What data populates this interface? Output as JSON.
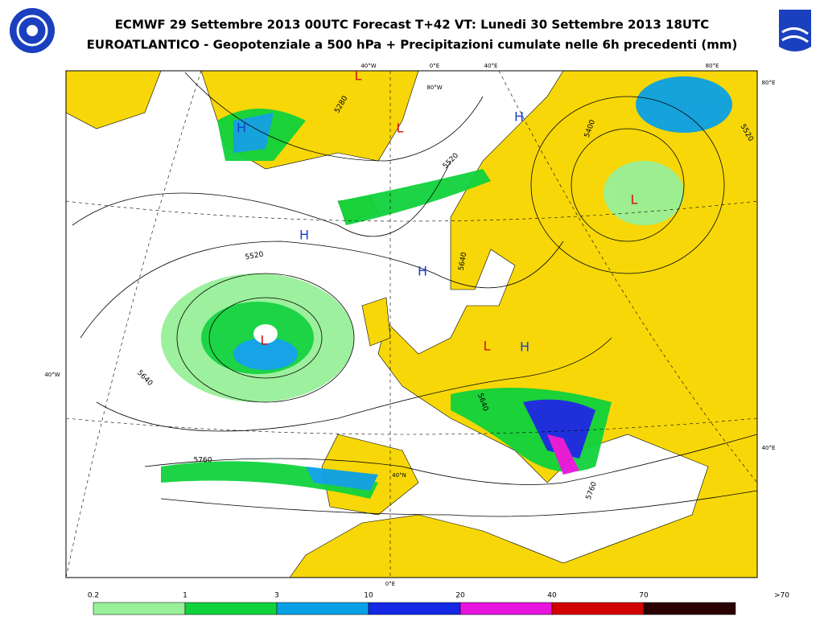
{
  "header": {
    "title": "ECMWF 29 Settembre 2013 00UTC Forecast T+42 VT: Lunedi 30 Settembre 2013 18UTC",
    "subtitle": "EUROATLANTICO - Geopotenziale a 500 hPa + Precipitazioni cumulate nelle 6h precedenti (mm)"
  },
  "map": {
    "pressure_centers": [
      {
        "text": "L",
        "color": "#d41010"
      },
      {
        "text": "L",
        "color": "#d41010"
      },
      {
        "text": "H",
        "color": "#1a3fd0"
      },
      {
        "text": "H",
        "color": "#1a3fd0"
      },
      {
        "text": "L",
        "color": "#d41010"
      },
      {
        "text": "H",
        "color": "#1a3fd0"
      },
      {
        "text": "H",
        "color": "#1a3fd0"
      },
      {
        "text": "L",
        "color": "#d41010"
      },
      {
        "text": "L",
        "color": "#d41010"
      },
      {
        "text": "H",
        "color": "#1a3fd0"
      }
    ],
    "contour_labels": [
      "5280",
      "5520",
      "5400",
      "5520",
      "5640",
      "5520",
      "5640",
      "5760",
      "5640",
      "5760"
    ],
    "graticule_labels": [
      "40°W",
      "0°E",
      "40°E",
      "80°E",
      "80°E",
      "80°W",
      "40°W",
      "40°E",
      "40°N",
      "0°E"
    ]
  },
  "legend": {
    "items": [
      {
        "label": "0.2",
        "color": "#98f098"
      },
      {
        "label": "1",
        "color": "#10d23c"
      },
      {
        "label": "3",
        "color": "#0aa0e6"
      },
      {
        "label": "10",
        "color": "#1428e6"
      },
      {
        "label": "20",
        "color": "#e614dc"
      },
      {
        "label": "40",
        "color": "#d20000"
      },
      {
        "label": "70",
        "color": "#2a0000"
      },
      {
        "label": ">70",
        "color": null
      }
    ]
  }
}
